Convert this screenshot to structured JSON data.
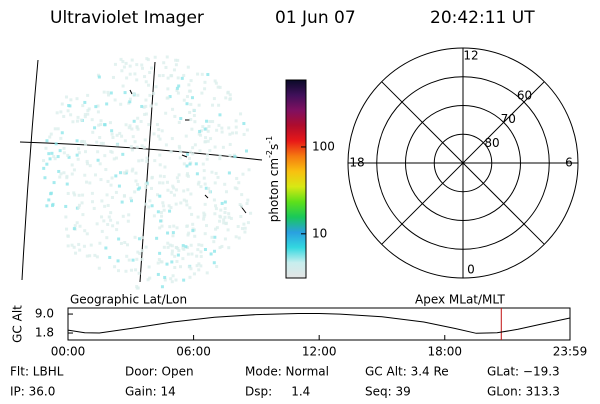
{
  "header": {
    "title": "Ultraviolet Imager",
    "date": "01 Jun 07",
    "time": "20:42:11 UT"
  },
  "colorbar": {
    "label": [
      "photon cm",
      "-2",
      "s",
      "-1"
    ],
    "log": true,
    "clim": [
      3.1,
      590
    ],
    "ticks": [
      10,
      100
    ],
    "colormap": [
      "#e4e4e4",
      "#c8eeee",
      "#33d8e0",
      "#2aa0e0",
      "#19c85a",
      "#5ee01a",
      "#d8e814",
      "#f8c010",
      "#f57a10",
      "#e81818",
      "#b00c2c",
      "#801060",
      "#40105a",
      "#0a0a28"
    ]
  },
  "polar": {
    "rlim": [
      90,
      50
    ],
    "rings": [
      80,
      70,
      60
    ],
    "mlt_ticks": [
      12,
      18,
      6,
      0
    ]
  },
  "altitude": {
    "axis_label": "GC Alt",
    "left_label": "Geographic Lat/Lon",
    "right_label": "Apex MLat/MLT",
    "xlim": [
      0,
      23.983
    ],
    "ylim": [
      -0.85,
      11.3
    ],
    "xticks": [
      {
        "value": 0,
        "label": "00:00"
      },
      {
        "value": 6,
        "label": "06:00"
      },
      {
        "value": 12,
        "label": "12:00"
      },
      {
        "value": 18,
        "label": "18:00"
      },
      {
        "value": 23.983,
        "label": "23:59"
      }
    ],
    "yticks": [
      {
        "value": 9,
        "label": "9.0"
      },
      1.8
    ],
    "x": [
      0,
      0.8,
      1.5,
      3,
      5,
      7,
      9,
      11,
      12,
      13,
      15,
      17,
      18.5,
      19.5,
      20.5,
      21.5,
      22.5,
      23.983
    ],
    "values": [
      2.9,
      1.9,
      1.8,
      3.5,
      6,
      7.8,
      8.8,
      9.2,
      9.2,
      9.0,
      8.0,
      6.0,
      3.5,
      1.7,
      1.9,
      3.2,
      5.0,
      7.5
    ],
    "color": "#000000",
    "marker_hour": 20.7,
    "marker_color": "#c01010"
  },
  "footer": [
    [
      "Flt: LBHL",
      "Door: Open",
      "Mode: Normal",
      "GC Alt: 3.4 Re",
      "GLat: −19.3"
    ],
    [
      "IP: 36.0",
      "Gain: 14",
      "Dsp:     1.4",
      "Seq: 39",
      "GLon: 313.3"
    ]
  ]
}
